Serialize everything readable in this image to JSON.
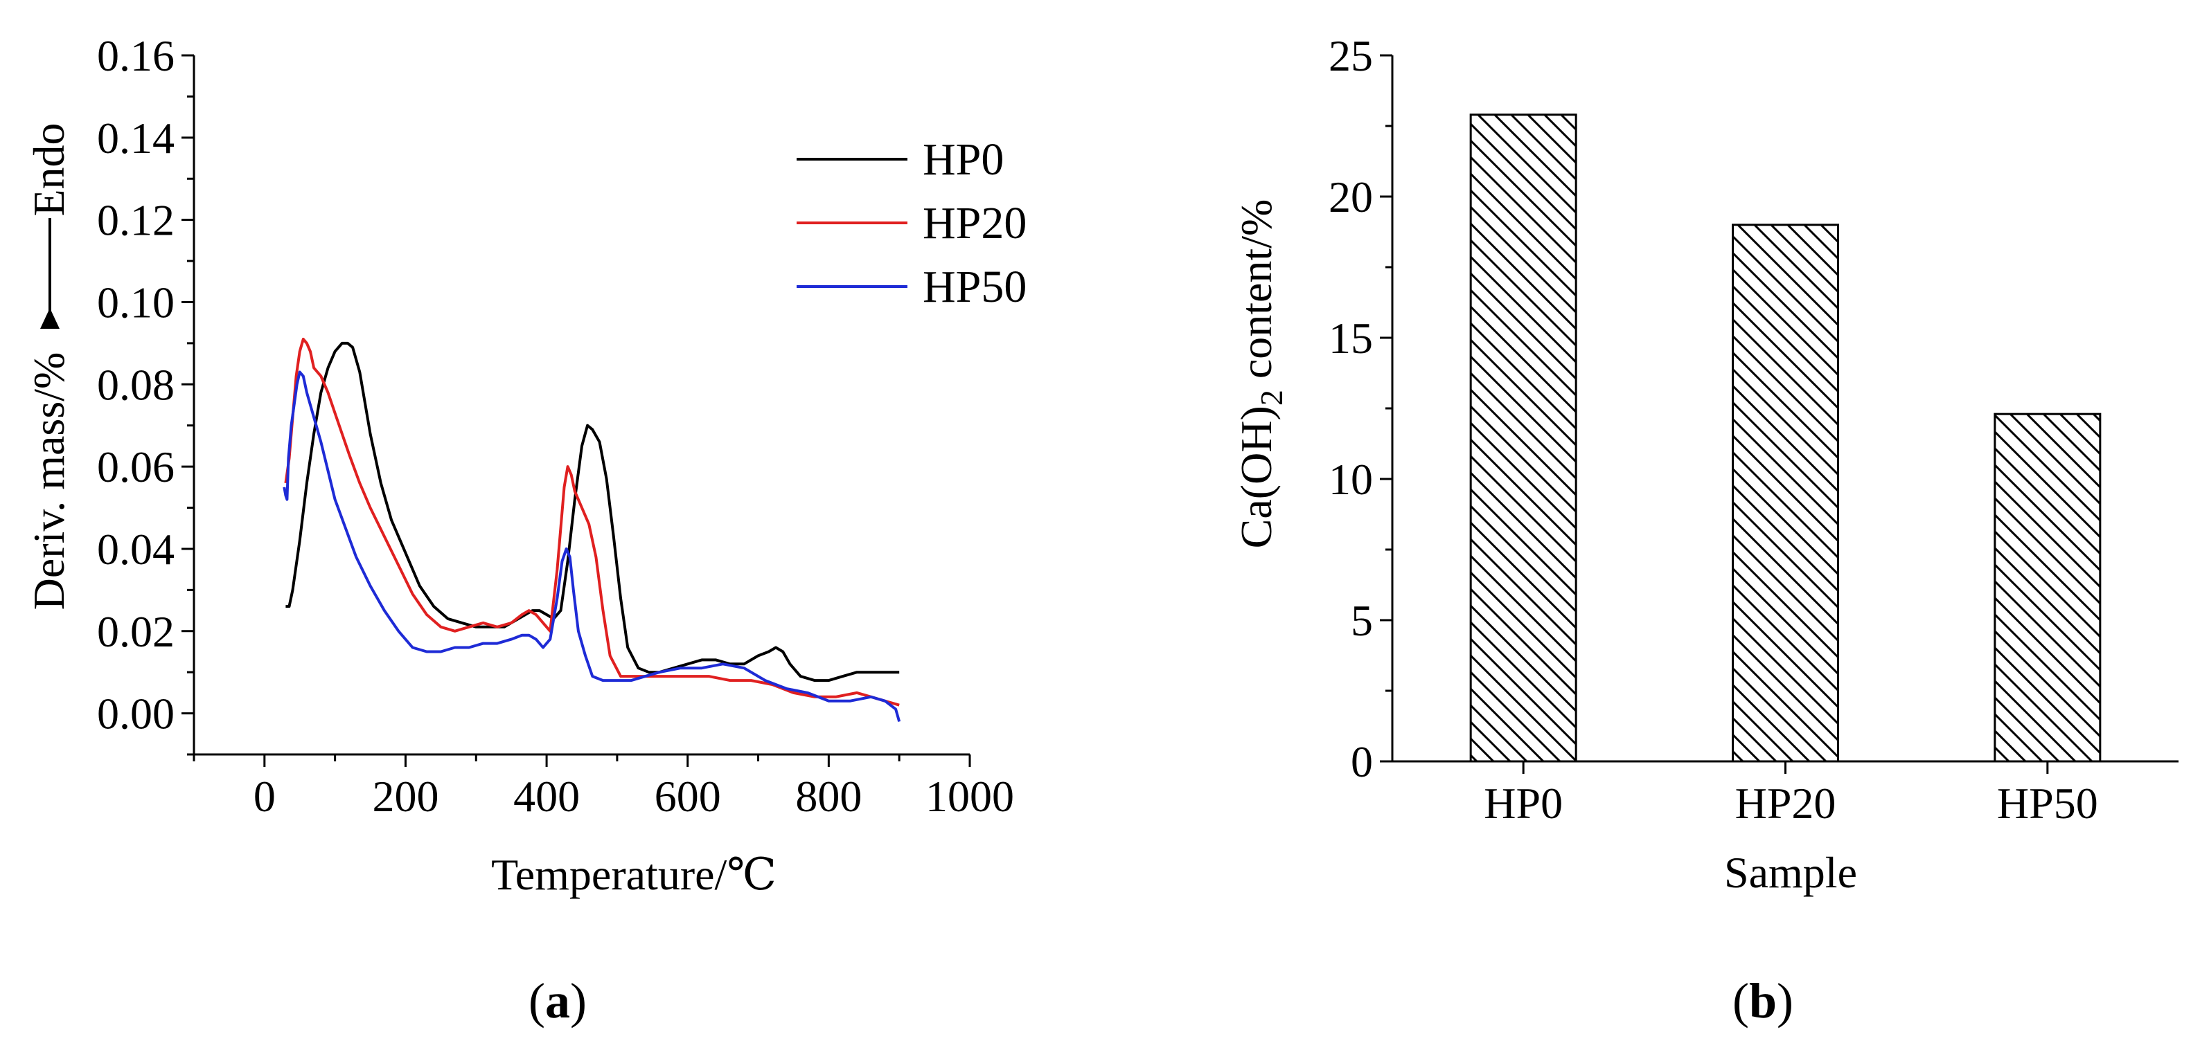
{
  "chart_data": [
    {
      "panel": "(a)",
      "type": "line",
      "xlabel": "Temperature/℃",
      "ylabel": "Deriv. mass/%",
      "ylabel_suffix": "Endo",
      "xlim": [
        -100,
        1000
      ],
      "ylim": [
        -0.01,
        0.16
      ],
      "x_ticks": [
        0,
        200,
        400,
        600,
        800,
        1000
      ],
      "x_tick_labels": [
        "0",
        "200",
        "400",
        "600",
        "800",
        "1000"
      ],
      "y_ticks": [
        0.0,
        0.02,
        0.04,
        0.06,
        0.08,
        0.1,
        0.12,
        0.14,
        0.16
      ],
      "y_tick_labels": [
        "0.00",
        "0.02",
        "0.04",
        "0.06",
        "0.08",
        "0.10",
        "0.12",
        "0.14",
        "0.16"
      ],
      "grid": false,
      "legend_position": "top-right",
      "series": [
        {
          "name": "HP0",
          "color": "#000000",
          "x": [
            30,
            35,
            40,
            50,
            60,
            70,
            80,
            90,
            100,
            110,
            118,
            125,
            135,
            150,
            165,
            180,
            200,
            220,
            240,
            260,
            280,
            300,
            320,
            340,
            360,
            380,
            390,
            400,
            410,
            420,
            430,
            440,
            450,
            458,
            465,
            475,
            485,
            495,
            505,
            515,
            530,
            545,
            560,
            580,
            600,
            620,
            640,
            660,
            680,
            700,
            715,
            725,
            735,
            745,
            760,
            780,
            800,
            820,
            840,
            860,
            880,
            900
          ],
          "y": [
            0.026,
            0.026,
            0.03,
            0.042,
            0.056,
            0.068,
            0.078,
            0.084,
            0.088,
            0.09,
            0.09,
            0.089,
            0.083,
            0.068,
            0.056,
            0.047,
            0.039,
            0.031,
            0.026,
            0.023,
            0.022,
            0.021,
            0.021,
            0.021,
            0.023,
            0.025,
            0.025,
            0.024,
            0.023,
            0.025,
            0.037,
            0.052,
            0.065,
            0.07,
            0.069,
            0.066,
            0.057,
            0.043,
            0.028,
            0.016,
            0.011,
            0.01,
            0.01,
            0.011,
            0.012,
            0.013,
            0.013,
            0.012,
            0.012,
            0.014,
            0.015,
            0.016,
            0.015,
            0.012,
            0.009,
            0.008,
            0.008,
            0.009,
            0.01,
            0.01,
            0.01,
            0.01
          ]
        },
        {
          "name": "HP20",
          "color": "#e02020",
          "x": [
            30,
            35,
            40,
            45,
            50,
            55,
            60,
            65,
            70,
            80,
            90,
            100,
            110,
            120,
            135,
            150,
            170,
            190,
            210,
            230,
            250,
            270,
            290,
            310,
            330,
            350,
            365,
            375,
            385,
            395,
            405,
            415,
            425,
            430,
            435,
            440,
            450,
            460,
            470,
            480,
            490,
            505,
            520,
            540,
            560,
            580,
            600,
            630,
            660,
            690,
            720,
            750,
            780,
            810,
            840,
            860,
            880,
            900
          ],
          "y": [
            0.056,
            0.062,
            0.072,
            0.082,
            0.088,
            0.091,
            0.09,
            0.088,
            0.084,
            0.082,
            0.078,
            0.073,
            0.068,
            0.063,
            0.056,
            0.05,
            0.043,
            0.036,
            0.029,
            0.024,
            0.021,
            0.02,
            0.021,
            0.022,
            0.021,
            0.022,
            0.024,
            0.025,
            0.024,
            0.022,
            0.02,
            0.035,
            0.055,
            0.06,
            0.058,
            0.054,
            0.05,
            0.046,
            0.038,
            0.025,
            0.014,
            0.009,
            0.009,
            0.009,
            0.009,
            0.009,
            0.009,
            0.009,
            0.008,
            0.008,
            0.007,
            0.005,
            0.004,
            0.004,
            0.005,
            0.004,
            0.003,
            0.002
          ]
        },
        {
          "name": "HP50",
          "color": "#1e2bd6",
          "x": [
            28,
            30,
            32,
            34,
            38,
            42,
            46,
            50,
            55,
            60,
            65,
            70,
            80,
            90,
            100,
            115,
            130,
            150,
            170,
            190,
            210,
            230,
            250,
            270,
            290,
            310,
            330,
            350,
            365,
            375,
            385,
            395,
            405,
            415,
            422,
            428,
            433,
            438,
            445,
            455,
            465,
            480,
            500,
            520,
            540,
            560,
            590,
            620,
            650,
            680,
            710,
            740,
            770,
            800,
            830,
            860,
            880,
            895,
            900
          ],
          "y": [
            0.055,
            0.053,
            0.052,
            0.062,
            0.07,
            0.075,
            0.08,
            0.083,
            0.082,
            0.078,
            0.075,
            0.072,
            0.066,
            0.059,
            0.052,
            0.045,
            0.038,
            0.031,
            0.025,
            0.02,
            0.016,
            0.015,
            0.015,
            0.016,
            0.016,
            0.017,
            0.017,
            0.018,
            0.019,
            0.019,
            0.018,
            0.016,
            0.018,
            0.028,
            0.037,
            0.04,
            0.038,
            0.03,
            0.02,
            0.014,
            0.009,
            0.008,
            0.008,
            0.008,
            0.009,
            0.01,
            0.011,
            0.011,
            0.012,
            0.011,
            0.008,
            0.006,
            0.005,
            0.003,
            0.003,
            0.004,
            0.003,
            0.001,
            -0.002
          ]
        }
      ]
    },
    {
      "panel": "(b)",
      "type": "bar",
      "categories": [
        "HP0",
        "HP20",
        "HP50"
      ],
      "values": [
        22.9,
        19.0,
        12.3
      ],
      "xlabel": "Sample",
      "ylabel_main": "Ca(OH)",
      "ylabel_sub": "2",
      "ylabel_rest": " content/%",
      "ylim": [
        0,
        25
      ],
      "y_ticks": [
        0,
        5,
        10,
        15,
        20,
        25
      ],
      "y_tick_labels": [
        "0",
        "5",
        "10",
        "15",
        "20",
        "25"
      ],
      "grid": false,
      "bar_fill": "diagonal-hatch"
    }
  ],
  "panel_labels": {
    "a_open": "(",
    "a_letter": "a",
    "a_close": ")",
    "b_open": "(",
    "b_letter": "b",
    "b_close": ")"
  }
}
